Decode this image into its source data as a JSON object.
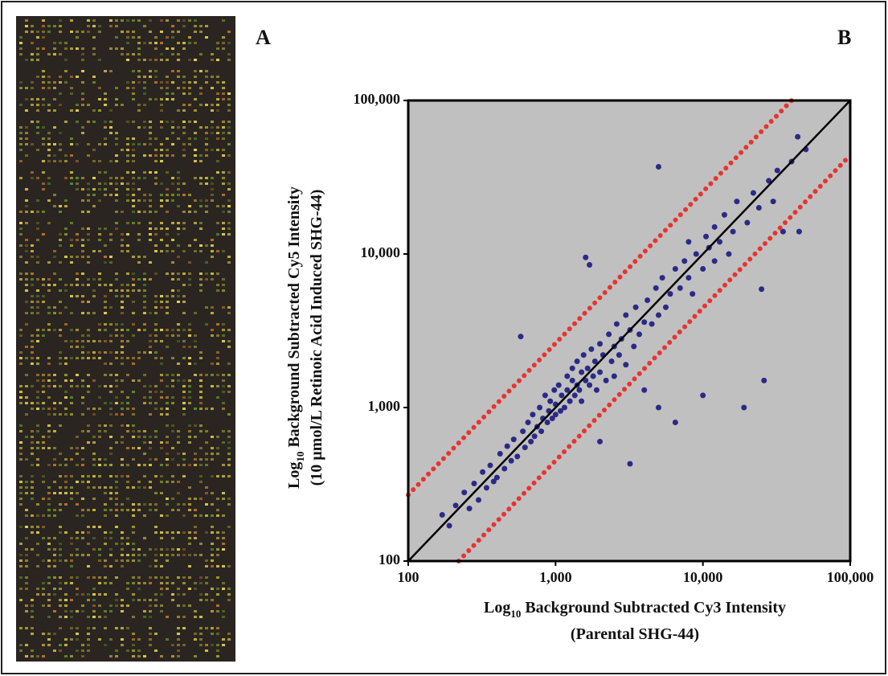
{
  "chart_data": {
    "type": "scatter",
    "panel_labels": [
      "A",
      "B"
    ],
    "xlabel": {
      "prefix": "Log",
      "subscript": "10",
      "text": "Background Subtracted Cy3 Intensity",
      "line2": "(Parental SHG-44)"
    },
    "ylabel": {
      "prefix": "Log",
      "subscript": "10",
      "text": "Background Subtracted Cy5 Intensity",
      "line2": "(10 µmol/L Retinoic Acid Induced SHG-44)"
    },
    "log_x": true,
    "log_y": true,
    "xlim": [
      100,
      100000
    ],
    "ylim": [
      100,
      100000
    ],
    "xticks": [
      100,
      {
        "value": 1000,
        "label": "1,000"
      },
      {
        "value": 10000,
        "label": "10,000"
      },
      {
        "value": 100000,
        "label": "100,000"
      }
    ],
    "yticks": [
      100,
      {
        "value": 1000,
        "label": "1,000"
      },
      {
        "value": 10000,
        "label": "10,000"
      },
      {
        "value": 100000,
        "label": "100,000"
      }
    ],
    "plot_background": "#c0c0c0",
    "color": "#2b2a86",
    "x": [
      170,
      190,
      210,
      240,
      260,
      280,
      300,
      320,
      340,
      360,
      380,
      400,
      420,
      450,
      470,
      500,
      520,
      550,
      580,
      600,
      620,
      650,
      680,
      700,
      720,
      750,
      780,
      800,
      820,
      850,
      880,
      900,
      920,
      950,
      980,
      1000,
      1000,
      1050,
      1080,
      1100,
      1150,
      1200,
      1200,
      1250,
      1300,
      1300,
      1350,
      1400,
      1400,
      1450,
      1500,
      1500,
      1550,
      1600,
      1600,
      1650,
      1700,
      1700,
      1750,
      1800,
      1850,
      1900,
      2000,
      2000,
      2000,
      2100,
      2200,
      2300,
      2400,
      2500,
      2500,
      2600,
      2700,
      2800,
      3000,
      3000,
      3200,
      3200,
      3400,
      3500,
      3700,
      4000,
      4000,
      4200,
      4500,
      4800,
      5000,
      5000,
      5000,
      5300,
      5600,
      6000,
      6500,
      6500,
      7000,
      7500,
      8000,
      8000,
      8500,
      9000,
      10000,
      10000,
      10500,
      11000,
      12000,
      12000,
      13000,
      14000,
      15000,
      16000,
      17000,
      19000,
      20000,
      22000,
      24000,
      25000,
      26000,
      28000,
      30000,
      32000,
      35000,
      40000,
      44000,
      45000,
      50000
    ],
    "values": [
      200,
      170,
      230,
      280,
      220,
      320,
      250,
      380,
      300,
      420,
      330,
      350,
      500,
      400,
      560,
      450,
      620,
      480,
      2900,
      700,
      550,
      800,
      600,
      900,
      650,
      750,
      1000,
      700,
      850,
      1200,
      800,
      950,
      1100,
      850,
      1300,
      900,
      1050,
      1400,
      950,
      1200,
      1000,
      1600,
      1300,
      1100,
      1500,
      1800,
      1200,
      1400,
      2000,
      1300,
      1700,
      1100,
      2200,
      1500,
      9500,
      1800,
      8500,
      1400,
      2400,
      1600,
      2000,
      1300,
      2600,
      1700,
      600,
      2200,
      1500,
      3000,
      2000,
      2500,
      1600,
      3500,
      2200,
      2800,
      1900,
      4000,
      430,
      3200,
      2500,
      4500,
      3000,
      3600,
      1300,
      5000,
      3500,
      6000,
      37000,
      4000,
      1000,
      7000,
      4500,
      5500,
      800,
      8000,
      6000,
      9000,
      7000,
      12000,
      5500,
      10000,
      1200,
      8000,
      13000,
      11000,
      9000,
      15000,
      12000,
      18000,
      10000,
      14000,
      22000,
      1000,
      16000,
      25000,
      20000,
      5900,
      1500,
      30000,
      22000,
      35000,
      14000,
      40000,
      58000,
      14000,
      48000
    ],
    "reference_lines": [
      {
        "x": [
          100,
          100000
        ],
        "values": [
          100,
          100000
        ],
        "color": "#000000",
        "style": "solid"
      },
      {
        "x": [
          100,
          40000
        ],
        "values": [
          270,
          100000
        ],
        "color": "#e8332f",
        "style": "dotted"
      },
      {
        "x": [
          220,
          100000
        ],
        "values": [
          100,
          44000
        ],
        "color": "#e8332f",
        "style": "dotted"
      }
    ]
  }
}
